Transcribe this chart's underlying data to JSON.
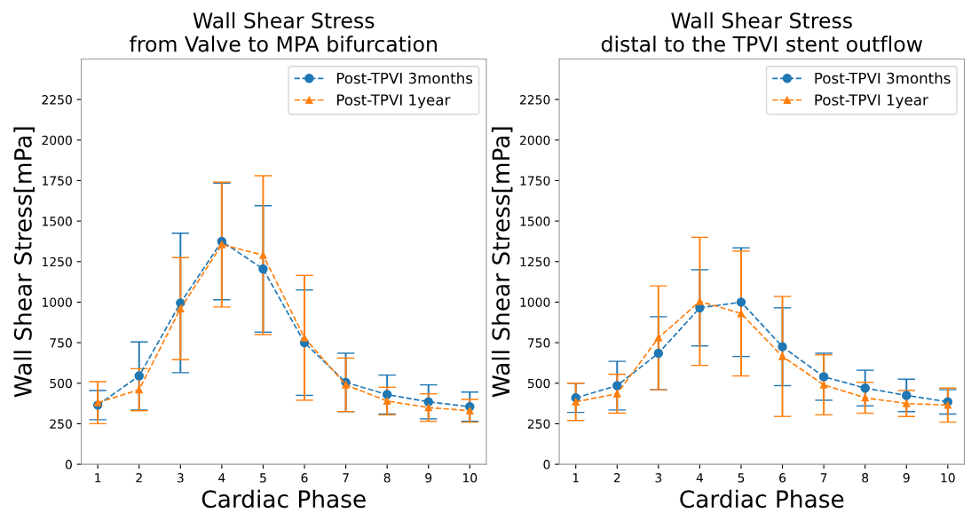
{
  "chart_data": [
    {
      "type": "line",
      "title": "Wall Shear Stress\nfrom Valve to MPA bifurcation",
      "xlabel": "Cardiac Phase",
      "ylabel": "Wall Shear Stress[mPa]",
      "x": [
        1,
        2,
        3,
        4,
        5,
        6,
        7,
        8,
        9,
        10
      ],
      "xlim": [
        0.6,
        10.4
      ],
      "xticks": [
        1,
        2,
        3,
        4,
        5,
        6,
        7,
        8,
        9,
        10
      ],
      "ylim": [
        0,
        2500
      ],
      "yticks": [
        0,
        250,
        500,
        750,
        1000,
        1250,
        1500,
        1750,
        2000,
        2250
      ],
      "legend": "top right",
      "line_style": "dashed",
      "grid": false,
      "series": [
        {
          "name": "Post-TPVI 3months",
          "color": "#1f77b4",
          "marker": "circle",
          "values": [
            365,
            545,
            995,
            1375,
            1205,
            750,
            505,
            430,
            385,
            355
          ],
          "errors": [
            90,
            210,
            430,
            360,
            390,
            325,
            180,
            120,
            105,
            90
          ]
        },
        {
          "name": "Post-TPVI 1year",
          "color": "#ff7f0e",
          "marker": "triangle",
          "values": [
            380,
            460,
            960,
            1355,
            1290,
            780,
            490,
            390,
            350,
            330
          ],
          "errors": [
            130,
            130,
            315,
            385,
            490,
            385,
            165,
            85,
            85,
            70
          ]
        }
      ]
    },
    {
      "type": "line",
      "title": "Wall Shear Stress\ndistal to the TPVI stent outflow",
      "xlabel": "Cardiac Phase",
      "ylabel": "Wall Shear Stress[mPa]",
      "x": [
        1,
        2,
        3,
        4,
        5,
        6,
        7,
        8,
        9,
        10
      ],
      "xlim": [
        0.6,
        10.4
      ],
      "xticks": [
        1,
        2,
        3,
        4,
        5,
        6,
        7,
        8,
        9,
        10
      ],
      "ylim": [
        0,
        2500
      ],
      "yticks": [
        0,
        250,
        500,
        750,
        1000,
        1250,
        1500,
        1750,
        2000,
        2250
      ],
      "legend": "top right",
      "line_style": "dashed",
      "grid": false,
      "series": [
        {
          "name": "Post-TPVI 3months",
          "color": "#1f77b4",
          "marker": "circle",
          "values": [
            410,
            485,
            685,
            965,
            1000,
            725,
            540,
            470,
            425,
            385
          ],
          "errors": [
            90,
            150,
            225,
            235,
            335,
            240,
            145,
            110,
            100,
            75
          ]
        },
        {
          "name": "Post-TPVI 1year",
          "color": "#ff7f0e",
          "marker": "triangle",
          "values": [
            385,
            435,
            780,
            1005,
            930,
            665,
            490,
            410,
            375,
            365
          ],
          "errors": [
            115,
            120,
            320,
            395,
            385,
            370,
            185,
            95,
            80,
            105
          ]
        }
      ]
    }
  ]
}
